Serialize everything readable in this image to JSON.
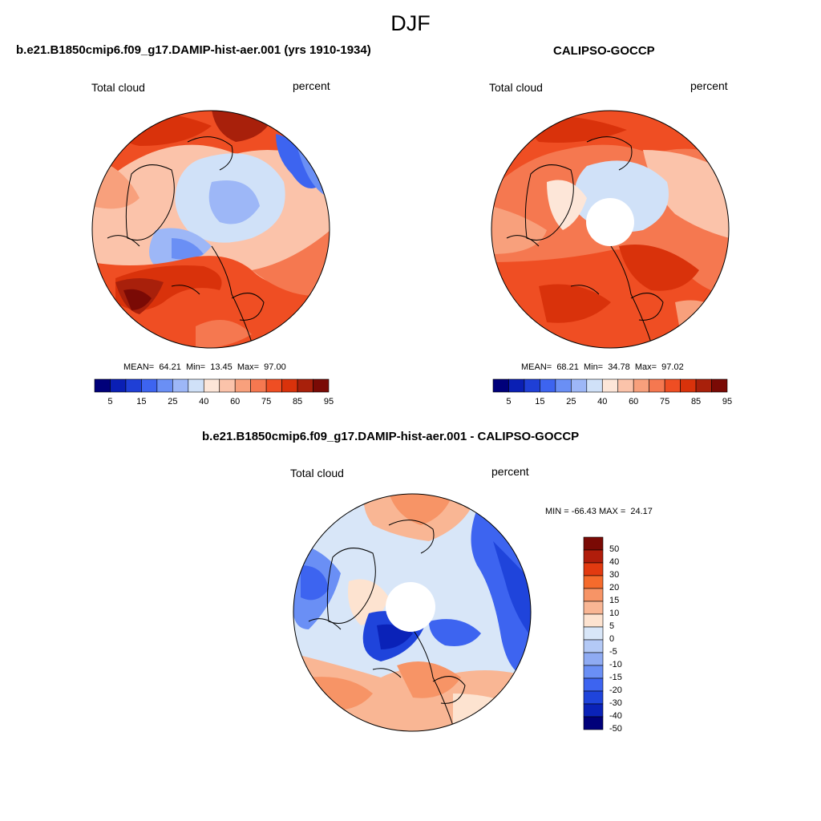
{
  "season": "DJF",
  "panels": [
    {
      "id": "model",
      "title": "b.e21.B1850cmip6.f09_g17.DAMIP-hist-aer.001 (yrs 1910-1934)",
      "left_label": "Total cloud",
      "right_label": "percent",
      "stats": "MEAN=  64.21  Min=  13.45  Max=  97.00",
      "has_pole_hole": false
    },
    {
      "id": "obs",
      "title": "CALIPSO-GOCCP",
      "left_label": "Total cloud",
      "right_label": "percent",
      "stats": "MEAN=  68.21  Min=  34.78  Max=  97.02",
      "has_pole_hole": true
    },
    {
      "id": "diff",
      "title": "b.e21.B1850cmip6.f09_g17.DAMIP-hist-aer.001 - CALIPSO-GOCCP",
      "left_label": "Total cloud",
      "right_label": "percent",
      "stats": "MIN = -66.43 MAX =  24.17",
      "has_pole_hole": true
    }
  ],
  "abs_colorbar": {
    "colors": [
      "#00007a",
      "#0a1fb4",
      "#1f3fd6",
      "#3d64f0",
      "#6a8ff5",
      "#9db7f7",
      "#d0e1f8",
      "#fde6d8",
      "#fbc3aa",
      "#f8a07c",
      "#f57850",
      "#ef4e23",
      "#d9320b",
      "#a8200b",
      "#7a0a05"
    ],
    "tick_labels": [
      "5",
      "15",
      "25",
      "40",
      "60",
      "75",
      "85",
      "95"
    ]
  },
  "diff_colorbar": {
    "colors": [
      "#7a0a05",
      "#b01d0b",
      "#e23a10",
      "#f56b2c",
      "#f79466",
      "#f9b694",
      "#fde3d0",
      "#d8e6f8",
      "#b3c9f6",
      "#8fabf3",
      "#6a8ff5",
      "#3d64f0",
      "#1f44db",
      "#0a22b8",
      "#00007a"
    ],
    "tick_labels": [
      "50",
      "40",
      "30",
      "20",
      "15",
      "10",
      "5",
      "0",
      "-5",
      "-10",
      "-15",
      "-20",
      "-30",
      "-40",
      "-50"
    ]
  }
}
